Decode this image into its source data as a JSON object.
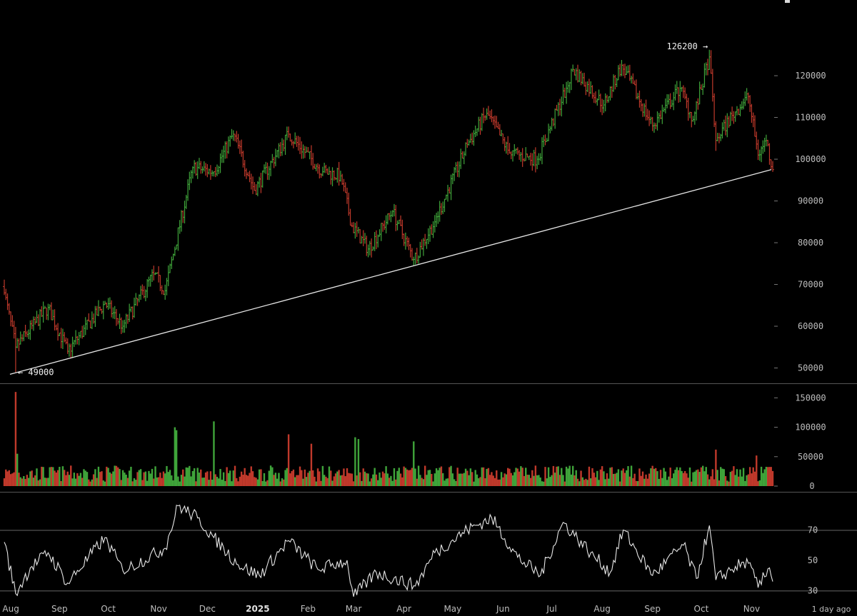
{
  "status_label": "1 day ago",
  "colors": {
    "up": "#3fa43a",
    "down": "#c0392b",
    "line": "#e6e6e6",
    "separator": "#555555",
    "grid": "#666666"
  },
  "chart_data": [
    {
      "type": "candlestick",
      "panel": "price",
      "y_ticks": [
        "50000",
        "60000",
        "70000",
        "80000",
        "90000",
        "100000",
        "110000",
        "120000"
      ],
      "ylim": [
        46500,
        133000
      ],
      "x_ticks": [
        "Aug",
        "Sep",
        "Oct",
        "Nov",
        "Dec",
        "2025",
        "Feb",
        "Mar",
        "Apr",
        "May",
        "Jun",
        "Jul",
        "Aug",
        "Sep",
        "Oct",
        "Nov"
      ],
      "x_ticks_bold": [
        "2025"
      ],
      "annotations": [
        {
          "text": "← 49000",
          "value": 49000,
          "date": "2024-08-05"
        },
        {
          "text": "126200 →",
          "value": 126200,
          "date": "2025-10-06"
        }
      ],
      "trendline": {
        "from": {
          "date": "2024-08-05",
          "value": 49000
        },
        "to": {
          "date": "2025-11-14",
          "value": 97500
        }
      },
      "key_points": [
        {
          "date": "2024-07-29",
          "close": 68000
        },
        {
          "date": "2024-08-05",
          "close": 55000,
          "low": 49000
        },
        {
          "date": "2024-08-25",
          "close": 64500
        },
        {
          "date": "2024-09-06",
          "close": 54000
        },
        {
          "date": "2024-09-29",
          "close": 65500
        },
        {
          "date": "2024-10-10",
          "close": 60000
        },
        {
          "date": "2024-10-29",
          "close": 72500
        },
        {
          "date": "2024-11-05",
          "close": 68500
        },
        {
          "date": "2024-11-22",
          "close": 98000
        },
        {
          "date": "2024-12-05",
          "close": 97000
        },
        {
          "date": "2024-12-17",
          "close": 106000
        },
        {
          "date": "2024-12-30",
          "close": 92500
        },
        {
          "date": "2025-01-20",
          "close": 106000
        },
        {
          "date": "2025-02-10",
          "close": 97000
        },
        {
          "date": "2025-02-21",
          "close": 96000
        },
        {
          "date": "2025-02-28",
          "close": 84000
        },
        {
          "date": "2025-03-10",
          "close": 78500
        },
        {
          "date": "2025-03-25",
          "close": 87500
        },
        {
          "date": "2025-04-07",
          "close": 76000
        },
        {
          "date": "2025-04-20",
          "close": 85000
        },
        {
          "date": "2025-05-10",
          "close": 103500
        },
        {
          "date": "2025-05-22",
          "close": 111000
        },
        {
          "date": "2025-06-05",
          "close": 101500
        },
        {
          "date": "2025-06-22",
          "close": 100000
        },
        {
          "date": "2025-07-10",
          "close": 117000
        },
        {
          "date": "2025-07-14",
          "close": 121500
        },
        {
          "date": "2025-08-02",
          "close": 113000
        },
        {
          "date": "2025-08-13",
          "close": 122500
        },
        {
          "date": "2025-09-01",
          "close": 108000
        },
        {
          "date": "2025-09-18",
          "close": 117000
        },
        {
          "date": "2025-09-26",
          "close": 109500
        },
        {
          "date": "2025-10-06",
          "close": 124500,
          "high": 126200
        },
        {
          "date": "2025-10-10",
          "close": 104500,
          "low": 102000
        },
        {
          "date": "2025-10-20",
          "close": 110500
        },
        {
          "date": "2025-10-30",
          "close": 115000
        },
        {
          "date": "2025-11-05",
          "close": 101000
        },
        {
          "date": "2025-11-10",
          "close": 104500
        },
        {
          "date": "2025-11-14",
          "close": 97500
        }
      ]
    },
    {
      "type": "bar",
      "panel": "volume",
      "y_ticks": [
        "0",
        "50000",
        "100000",
        "150000"
      ],
      "ylim": [
        0,
        165000
      ],
      "baseline": 25000,
      "notable_values": [
        {
          "date": "2024-08-05",
          "value": 160000
        },
        {
          "date": "2024-08-06",
          "value": 55000
        },
        {
          "date": "2024-11-11",
          "value": 100000
        },
        {
          "date": "2024-11-12",
          "value": 95000
        },
        {
          "date": "2024-12-05",
          "value": 110000
        },
        {
          "date": "2025-01-20",
          "value": 88000
        },
        {
          "date": "2025-02-03",
          "value": 72000
        },
        {
          "date": "2025-03-02",
          "value": 83000
        },
        {
          "date": "2025-03-04",
          "value": 80000
        },
        {
          "date": "2025-04-07",
          "value": 76000
        },
        {
          "date": "2025-10-10",
          "value": 62000
        },
        {
          "date": "2025-11-04",
          "value": 52000
        }
      ]
    },
    {
      "type": "line",
      "panel": "oscillator",
      "y_ticks": [
        "30",
        "50",
        "70"
      ],
      "ylim": [
        25,
        91
      ],
      "guides": [
        30,
        70
      ],
      "key_points": [
        {
          "date": "2024-07-29",
          "value": 62
        },
        {
          "date": "2024-08-05",
          "value": 28
        },
        {
          "date": "2024-08-14",
          "value": 45
        },
        {
          "date": "2024-08-25",
          "value": 55
        },
        {
          "date": "2024-09-06",
          "value": 35
        },
        {
          "date": "2024-09-29",
          "value": 65
        },
        {
          "date": "2024-10-10",
          "value": 43
        },
        {
          "date": "2024-11-05",
          "value": 58
        },
        {
          "date": "2024-11-13",
          "value": 86
        },
        {
          "date": "2024-11-25",
          "value": 78
        },
        {
          "date": "2024-12-05",
          "value": 65
        },
        {
          "date": "2024-12-20",
          "value": 47
        },
        {
          "date": "2025-01-02",
          "value": 40
        },
        {
          "date": "2025-01-20",
          "value": 63
        },
        {
          "date": "2025-02-07",
          "value": 44
        },
        {
          "date": "2025-02-25",
          "value": 50
        },
        {
          "date": "2025-03-01",
          "value": 26
        },
        {
          "date": "2025-03-15",
          "value": 42
        },
        {
          "date": "2025-04-08",
          "value": 33
        },
        {
          "date": "2025-04-20",
          "value": 55
        },
        {
          "date": "2025-05-10",
          "value": 70
        },
        {
          "date": "2025-05-25",
          "value": 78
        },
        {
          "date": "2025-06-10",
          "value": 52
        },
        {
          "date": "2025-06-24",
          "value": 40
        },
        {
          "date": "2025-07-08",
          "value": 75
        },
        {
          "date": "2025-07-25",
          "value": 55
        },
        {
          "date": "2025-08-06",
          "value": 42
        },
        {
          "date": "2025-08-14",
          "value": 70
        },
        {
          "date": "2025-09-01",
          "value": 40
        },
        {
          "date": "2025-09-20",
          "value": 60
        },
        {
          "date": "2025-09-28",
          "value": 38
        },
        {
          "date": "2025-10-06",
          "value": 73
        },
        {
          "date": "2025-10-10",
          "value": 37
        },
        {
          "date": "2025-10-22",
          "value": 46
        },
        {
          "date": "2025-10-30",
          "value": 48
        },
        {
          "date": "2025-11-05",
          "value": 32
        },
        {
          "date": "2025-11-12",
          "value": 45
        },
        {
          "date": "2025-11-14",
          "value": 36
        }
      ]
    }
  ]
}
